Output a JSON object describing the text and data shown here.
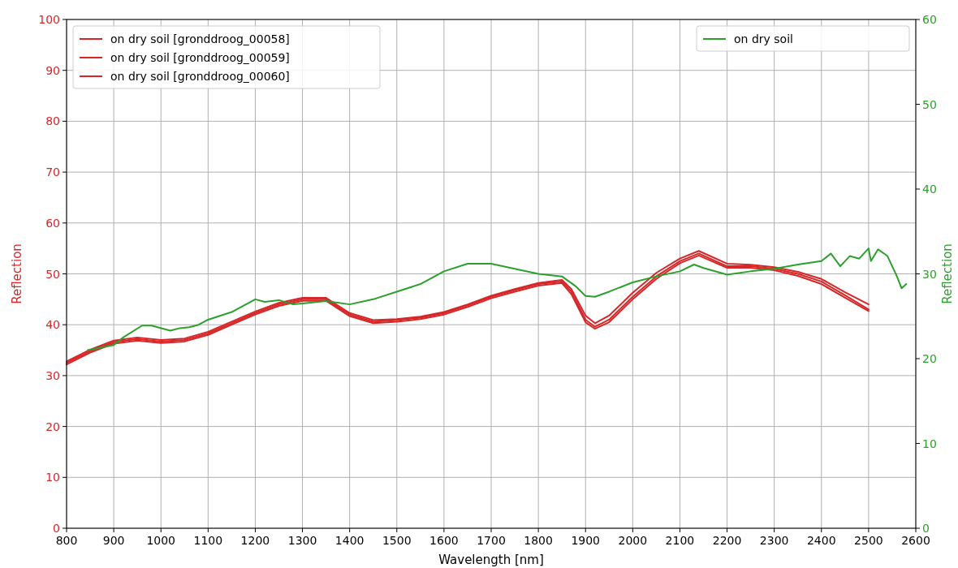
{
  "chart_data": {
    "type": "line",
    "xlabel": "Wavelength [nm]",
    "ylabel": "Reflection",
    "y2label": "Reflection",
    "xlim": [
      800,
      2600
    ],
    "xticks": [
      800,
      900,
      1000,
      1100,
      1200,
      1300,
      1400,
      1500,
      1600,
      1700,
      1800,
      1900,
      2000,
      2100,
      2200,
      2300,
      2400,
      2500,
      2600
    ],
    "ylim": [
      0,
      100
    ],
    "yticks": [
      0,
      10,
      20,
      30,
      40,
      50,
      60,
      70,
      80,
      90,
      100
    ],
    "y2lim": [
      0,
      60
    ],
    "y2ticks": [
      0,
      10,
      20,
      30,
      40,
      50,
      60
    ],
    "grid": true,
    "legend": "top",
    "line_style": "solid",
    "marker": "none",
    "x": [
      800,
      850,
      900,
      950,
      1000,
      1050,
      1100,
      1150,
      1200,
      1250,
      1300,
      1350,
      1400,
      1450,
      1500,
      1550,
      1600,
      1650,
      1700,
      1750,
      1800,
      1850,
      1870,
      1900,
      1920,
      1950,
      2000,
      2050,
      2100,
      2140,
      2200,
      2250,
      2300,
      2350,
      2400,
      2450,
      2500
    ],
    "series": [
      {
        "name": "on dry soil [gronddroog_00058]",
        "color": "#d62728",
        "values": [
          32.8,
          35.1,
          36.9,
          37.5,
          37.0,
          37.3,
          38.6,
          40.6,
          42.6,
          44.3,
          45.3,
          45.3,
          42.3,
          40.9,
          41.1,
          41.6,
          42.5,
          44.0,
          45.7,
          47.0,
          48.2,
          48.8,
          47.0,
          41.8,
          40.3,
          41.8,
          46.3,
          50.2,
          53.0,
          54.5,
          52.0,
          51.8,
          51.3,
          50.4,
          49.0,
          46.4,
          44.0
        ]
      },
      {
        "name": "on dry soil [gronddroog_00059]",
        "color": "#d62728",
        "values": [
          32.5,
          34.8,
          36.6,
          37.2,
          36.7,
          37.0,
          38.3,
          40.3,
          42.3,
          44.0,
          45.0,
          45.0,
          42.0,
          40.6,
          40.9,
          41.4,
          42.3,
          43.8,
          45.5,
          46.8,
          48.0,
          48.5,
          46.5,
          41.0,
          39.6,
          41.0,
          45.5,
          49.5,
          52.5,
          54.0,
          51.5,
          51.5,
          51.0,
          50.0,
          48.5,
          45.8,
          43.0
        ]
      },
      {
        "name": "on dry soil [gronddroog_00060]",
        "color": "#d62728",
        "values": [
          32.2,
          34.5,
          36.3,
          36.9,
          36.4,
          36.7,
          38.0,
          40.0,
          42.0,
          43.7,
          44.7,
          44.7,
          41.7,
          40.3,
          40.6,
          41.1,
          42.0,
          43.5,
          45.2,
          46.5,
          47.7,
          48.2,
          46.0,
          40.5,
          39.2,
          40.5,
          45.0,
          49.0,
          52.1,
          53.6,
          51.2,
          51.2,
          50.7,
          49.6,
          48.0,
          45.3,
          42.7
        ]
      },
      {
        "name": "on dry soil",
        "color": "#2ca02c",
        "axis": "y2",
        "x": [
          845,
          900,
          920,
          960,
          980,
          1020,
          1040,
          1060,
          1080,
          1100,
          1150,
          1200,
          1220,
          1250,
          1280,
          1300,
          1350,
          1400,
          1450,
          1500,
          1550,
          1600,
          1650,
          1700,
          1750,
          1800,
          1850,
          1880,
          1900,
          1920,
          1950,
          2000,
          2050,
          2100,
          2130,
          2150,
          2200,
          2250,
          2300,
          2350,
          2400,
          2420,
          2440,
          2460,
          2480,
          2500,
          2505,
          2520,
          2540,
          2560,
          2570,
          2580
        ],
        "values": [
          21.0,
          21.6,
          22.5,
          23.9,
          23.9,
          23.3,
          23.6,
          23.7,
          24.0,
          24.6,
          25.5,
          27.0,
          26.7,
          26.9,
          26.4,
          26.5,
          26.8,
          26.4,
          27.0,
          27.9,
          28.8,
          30.3,
          31.2,
          31.2,
          30.6,
          30.0,
          29.7,
          28.5,
          27.4,
          27.3,
          27.9,
          29.0,
          29.7,
          30.3,
          31.1,
          30.7,
          29.9,
          30.3,
          30.6,
          31.1,
          31.5,
          32.4,
          30.9,
          32.1,
          31.8,
          33.0,
          31.5,
          32.9,
          32.1,
          29.7,
          28.3,
          28.8
        ]
      }
    ]
  }
}
